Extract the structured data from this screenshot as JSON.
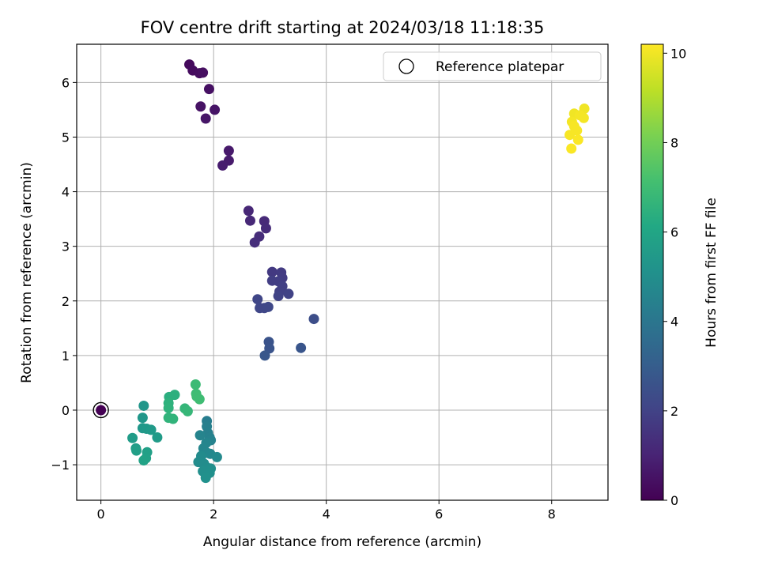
{
  "chart_data": {
    "type": "scatter",
    "title": "FOV centre drift starting at 2024/03/18 11:18:35",
    "xlabel": "Angular distance from reference (arcmin)",
    "ylabel": "Rotation from reference (arcmin)",
    "xlim": [
      -0.43,
      9.0
    ],
    "ylim": [
      -1.65,
      6.7
    ],
    "xticks": [
      0,
      2,
      4,
      6,
      8
    ],
    "yticks": [
      -1,
      0,
      1,
      2,
      3,
      4,
      5,
      6
    ],
    "xtick_labels": [
      "0",
      "2",
      "4",
      "6",
      "8"
    ],
    "ytick_labels": [
      "−1",
      "0",
      "1",
      "2",
      "3",
      "4",
      "5",
      "6"
    ],
    "grid": true,
    "legend": {
      "placement": "top-right",
      "entries": [
        "Reference platepar"
      ]
    },
    "reference_point": {
      "x": 0,
      "y": 0
    },
    "colorbar": {
      "label": "Hours from first FF file",
      "range": [
        0,
        10.2
      ],
      "ticks": [
        0,
        2,
        4,
        6,
        8,
        10
      ],
      "tick_labels": [
        "0",
        "2",
        "4",
        "6",
        "8",
        "10"
      ],
      "colormap": "viridis"
    },
    "points": [
      {
        "x": 0.0,
        "y": 0.0,
        "c": 0.0
      },
      {
        "x": 1.57,
        "y": 6.33,
        "c": 0.25
      },
      {
        "x": 1.63,
        "y": 6.22,
        "c": 0.3
      },
      {
        "x": 1.75,
        "y": 6.17,
        "c": 0.35
      },
      {
        "x": 1.81,
        "y": 6.18,
        "c": 0.4
      },
      {
        "x": 1.92,
        "y": 5.88,
        "c": 0.45
      },
      {
        "x": 1.77,
        "y": 5.56,
        "c": 0.5
      },
      {
        "x": 2.02,
        "y": 5.5,
        "c": 0.55
      },
      {
        "x": 1.86,
        "y": 5.34,
        "c": 0.6
      },
      {
        "x": 2.27,
        "y": 4.75,
        "c": 0.7
      },
      {
        "x": 2.27,
        "y": 4.57,
        "c": 0.75
      },
      {
        "x": 2.16,
        "y": 4.48,
        "c": 0.8
      },
      {
        "x": 2.62,
        "y": 3.65,
        "c": 1.1
      },
      {
        "x": 2.65,
        "y": 3.47,
        "c": 1.15
      },
      {
        "x": 2.9,
        "y": 3.46,
        "c": 1.2
      },
      {
        "x": 2.93,
        "y": 3.33,
        "c": 1.25
      },
      {
        "x": 2.81,
        "y": 3.18,
        "c": 1.3
      },
      {
        "x": 2.73,
        "y": 3.07,
        "c": 1.35
      },
      {
        "x": 3.04,
        "y": 2.53,
        "c": 1.7
      },
      {
        "x": 3.2,
        "y": 2.52,
        "c": 1.75
      },
      {
        "x": 3.22,
        "y": 2.42,
        "c": 1.8
      },
      {
        "x": 3.04,
        "y": 2.37,
        "c": 1.85
      },
      {
        "x": 3.15,
        "y": 2.36,
        "c": 1.85
      },
      {
        "x": 3.22,
        "y": 2.27,
        "c": 1.9
      },
      {
        "x": 3.17,
        "y": 2.17,
        "c": 1.95
      },
      {
        "x": 3.15,
        "y": 2.09,
        "c": 2.0
      },
      {
        "x": 3.33,
        "y": 2.13,
        "c": 2.0
      },
      {
        "x": 2.78,
        "y": 2.03,
        "c": 2.1
      },
      {
        "x": 2.82,
        "y": 1.87,
        "c": 2.15
      },
      {
        "x": 2.9,
        "y": 1.87,
        "c": 2.15
      },
      {
        "x": 2.97,
        "y": 1.89,
        "c": 2.2
      },
      {
        "x": 3.78,
        "y": 1.67,
        "c": 2.4
      },
      {
        "x": 2.98,
        "y": 1.25,
        "c": 2.6
      },
      {
        "x": 2.99,
        "y": 1.13,
        "c": 2.65
      },
      {
        "x": 3.55,
        "y": 1.14,
        "c": 2.7
      },
      {
        "x": 2.91,
        "y": 1.0,
        "c": 2.75
      },
      {
        "x": 1.88,
        "y": -0.2,
        "c": 4.3
      },
      {
        "x": 1.88,
        "y": -0.3,
        "c": 4.35
      },
      {
        "x": 1.9,
        "y": -0.42,
        "c": 4.4
      },
      {
        "x": 1.93,
        "y": -0.5,
        "c": 4.45
      },
      {
        "x": 1.95,
        "y": -0.55,
        "c": 4.5
      },
      {
        "x": 1.76,
        "y": -0.46,
        "c": 4.55
      },
      {
        "x": 1.87,
        "y": -0.6,
        "c": 4.6
      },
      {
        "x": 1.82,
        "y": -0.7,
        "c": 4.65
      },
      {
        "x": 1.88,
        "y": -0.78,
        "c": 4.7
      },
      {
        "x": 1.94,
        "y": -0.8,
        "c": 4.75
      },
      {
        "x": 2.06,
        "y": -0.86,
        "c": 4.8
      },
      {
        "x": 1.78,
        "y": -0.84,
        "c": 4.85
      },
      {
        "x": 1.73,
        "y": -0.95,
        "c": 4.9
      },
      {
        "x": 1.83,
        "y": -0.98,
        "c": 4.9
      },
      {
        "x": 1.88,
        "y": -1.05,
        "c": 4.95
      },
      {
        "x": 1.95,
        "y": -1.07,
        "c": 5.0
      },
      {
        "x": 1.81,
        "y": -1.12,
        "c": 5.0
      },
      {
        "x": 1.93,
        "y": -1.15,
        "c": 5.05
      },
      {
        "x": 1.86,
        "y": -1.24,
        "c": 5.1
      },
      {
        "x": 0.76,
        "y": 0.08,
        "c": 5.3
      },
      {
        "x": 0.74,
        "y": -0.14,
        "c": 5.35
      },
      {
        "x": 0.74,
        "y": -0.33,
        "c": 5.4
      },
      {
        "x": 0.81,
        "y": -0.34,
        "c": 5.45
      },
      {
        "x": 0.89,
        "y": -0.36,
        "c": 5.5
      },
      {
        "x": 1.0,
        "y": -0.5,
        "c": 5.55
      },
      {
        "x": 0.56,
        "y": -0.51,
        "c": 5.6
      },
      {
        "x": 0.62,
        "y": -0.7,
        "c": 5.65
      },
      {
        "x": 0.63,
        "y": -0.74,
        "c": 5.7
      },
      {
        "x": 0.82,
        "y": -0.77,
        "c": 5.75
      },
      {
        "x": 0.8,
        "y": -0.88,
        "c": 5.8
      },
      {
        "x": 0.76,
        "y": -0.92,
        "c": 5.85
      },
      {
        "x": 1.21,
        "y": 0.24,
        "c": 6.4
      },
      {
        "x": 1.31,
        "y": 0.28,
        "c": 6.45
      },
      {
        "x": 1.2,
        "y": 0.13,
        "c": 6.5
      },
      {
        "x": 1.2,
        "y": 0.04,
        "c": 6.55
      },
      {
        "x": 1.2,
        "y": -0.14,
        "c": 6.6
      },
      {
        "x": 1.28,
        "y": -0.16,
        "c": 6.6
      },
      {
        "x": 1.49,
        "y": 0.03,
        "c": 6.7
      },
      {
        "x": 1.54,
        "y": -0.02,
        "c": 6.75
      },
      {
        "x": 1.68,
        "y": 0.47,
        "c": 6.9
      },
      {
        "x": 1.69,
        "y": 0.3,
        "c": 6.95
      },
      {
        "x": 1.7,
        "y": 0.25,
        "c": 7.0
      },
      {
        "x": 1.75,
        "y": 0.2,
        "c": 7.0
      },
      {
        "x": 8.58,
        "y": 5.52,
        "c": 10.0
      },
      {
        "x": 8.4,
        "y": 5.43,
        "c": 10.0
      },
      {
        "x": 8.5,
        "y": 5.4,
        "c": 10.05
      },
      {
        "x": 8.57,
        "y": 5.35,
        "c": 10.05
      },
      {
        "x": 8.36,
        "y": 5.28,
        "c": 10.05
      },
      {
        "x": 8.4,
        "y": 5.2,
        "c": 10.1
      },
      {
        "x": 8.45,
        "y": 5.12,
        "c": 10.1
      },
      {
        "x": 8.32,
        "y": 5.04,
        "c": 10.1
      },
      {
        "x": 8.47,
        "y": 4.95,
        "c": 10.15
      },
      {
        "x": 8.35,
        "y": 4.79,
        "c": 10.15
      }
    ]
  }
}
